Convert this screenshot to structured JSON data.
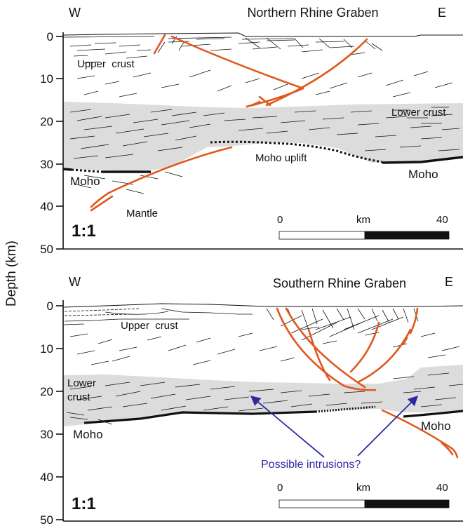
{
  "colors": {
    "fault": "#e0581e",
    "lower_crust": "#dcdcdc",
    "ink": "#111111",
    "intrusion_arrow": "#2d2aa0"
  },
  "y_axis": {
    "label": "Depth (km)",
    "ticks": [
      "0",
      "10",
      "20",
      "30",
      "40",
      "50"
    ]
  },
  "panels": [
    {
      "id": "north",
      "west": "W",
      "east": "E",
      "title": "Northern Rhine Graben",
      "upper_crust": "Upper  crust",
      "lower_crust": "Lower crust",
      "moho_uplift": "Moho uplift",
      "moho_left": "Moho",
      "moho_right": "Moho",
      "mantle": "Mantle",
      "scale_ratio": "1:1",
      "scale": {
        "start": "0",
        "unit": "km",
        "end": "40"
      }
    },
    {
      "id": "south",
      "west": "W",
      "east": "E",
      "title": "Southern Rhine Graben",
      "upper_crust": "Upper  crust",
      "lower_crust_line1": "Lower",
      "lower_crust_line2": "crust",
      "moho_left": "Moho",
      "moho_right": "Moho",
      "intrusions": "Possible intrusions?",
      "scale_ratio": "1:1",
      "scale": {
        "start": "0",
        "unit": "km",
        "end": "40"
      }
    }
  ]
}
